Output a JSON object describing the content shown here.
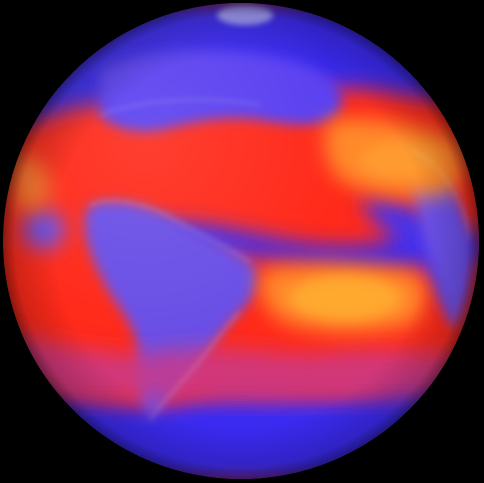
{
  "image": {
    "subject": "globe",
    "background_color": "#000000",
    "palette": {
      "cold": "#3a2cf0",
      "cool": "#6a4fe6",
      "mid": "#c93a8a",
      "warm": "#ff2a1a",
      "hot": "#ff8a2a",
      "hottest": "#ffb030",
      "highlight": "#ffffff"
    }
  }
}
